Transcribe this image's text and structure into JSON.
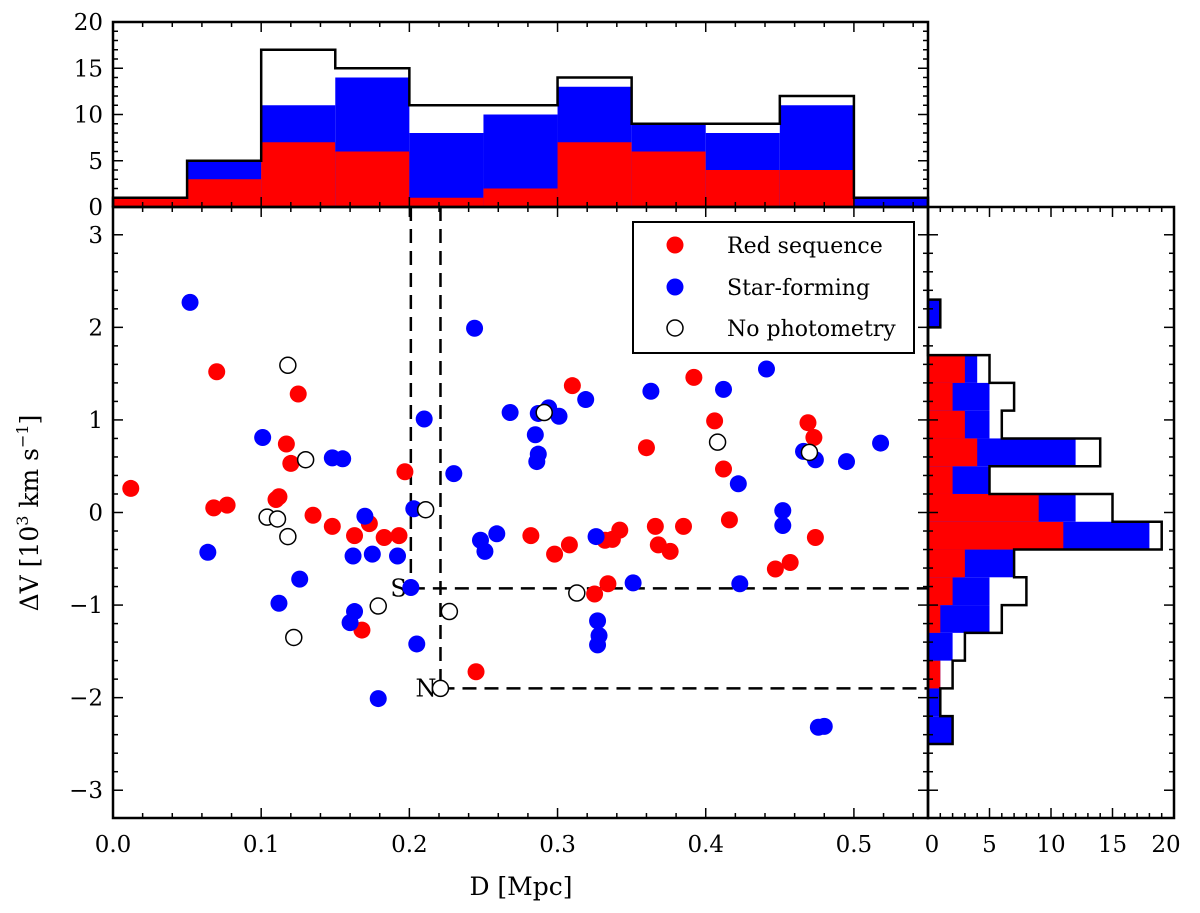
{
  "chart_data": {
    "type": "scatter",
    "xlabel": "D [Mpc]",
    "ylabel": "ΔV [10^3 km s^-1]",
    "ylabel_parts": {
      "pre": "ΔV [10",
      "sup1": "3",
      "mid": " km s",
      "sup2": "−1",
      "post": "]"
    },
    "xlim": [
      0.0,
      0.55
    ],
    "ylim": [
      -3.3,
      3.3
    ],
    "xticks": [
      0.0,
      0.1,
      0.2,
      0.3,
      0.4,
      0.5
    ],
    "xtick_labels": [
      "0.0",
      "0.1",
      "0.2",
      "0.3",
      "0.4",
      "0.5"
    ],
    "yticks": [
      -3,
      -2,
      -1,
      0,
      1,
      2,
      3
    ],
    "ytick_labels": [
      "−3",
      "−2",
      "−1",
      "0",
      "1",
      "2",
      "3"
    ],
    "legend": {
      "position": "top-right",
      "entries": [
        {
          "label": "Red sequence",
          "color": "#ff0000",
          "marker": "filled"
        },
        {
          "label": "Star-forming",
          "color": "#0000ff",
          "marker": "filled"
        },
        {
          "label": "No photometry",
          "color": "#000000",
          "marker": "open"
        }
      ]
    },
    "series": [
      {
        "name": "Red sequence",
        "color": "#ff0000",
        "points": [
          [
            0.012,
            0.26
          ],
          [
            0.07,
            1.52
          ],
          [
            0.068,
            0.05
          ],
          [
            0.077,
            0.08
          ],
          [
            0.11,
            0.14
          ],
          [
            0.112,
            0.17
          ],
          [
            0.117,
            0.74
          ],
          [
            0.12,
            0.53
          ],
          [
            0.125,
            1.28
          ],
          [
            0.135,
            -0.03
          ],
          [
            0.148,
            -0.15
          ],
          [
            0.163,
            -0.25
          ],
          [
            0.173,
            -0.12
          ],
          [
            0.168,
            -1.27
          ],
          [
            0.183,
            -0.27
          ],
          [
            0.193,
            -0.25
          ],
          [
            0.197,
            0.44
          ],
          [
            0.245,
            -1.72
          ],
          [
            0.282,
            -0.25
          ],
          [
            0.298,
            -0.45
          ],
          [
            0.308,
            -0.35
          ],
          [
            0.31,
            1.37
          ],
          [
            0.325,
            -0.88
          ],
          [
            0.332,
            -0.3
          ],
          [
            0.337,
            -0.29
          ],
          [
            0.334,
            -0.77
          ],
          [
            0.342,
            -0.19
          ],
          [
            0.36,
            0.7
          ],
          [
            0.366,
            -0.15
          ],
          [
            0.368,
            -0.35
          ],
          [
            0.376,
            -0.42
          ],
          [
            0.385,
            -0.15
          ],
          [
            0.392,
            1.46
          ],
          [
            0.406,
            0.99
          ],
          [
            0.412,
            0.47
          ],
          [
            0.416,
            -0.08
          ],
          [
            0.447,
            -0.61
          ],
          [
            0.457,
            -0.54
          ],
          [
            0.469,
            0.97
          ],
          [
            0.473,
            0.81
          ],
          [
            0.474,
            -0.27
          ]
        ]
      },
      {
        "name": "Star-forming",
        "color": "#0000ff",
        "points": [
          [
            0.052,
            2.27
          ],
          [
            0.064,
            -0.43
          ],
          [
            0.101,
            0.81
          ],
          [
            0.112,
            -0.98
          ],
          [
            0.126,
            -0.72
          ],
          [
            0.148,
            0.59
          ],
          [
            0.155,
            0.58
          ],
          [
            0.162,
            -0.47
          ],
          [
            0.16,
            -1.19
          ],
          [
            0.163,
            -1.07
          ],
          [
            0.17,
            -0.04
          ],
          [
            0.175,
            -0.45
          ],
          [
            0.179,
            -2.01
          ],
          [
            0.192,
            -0.47
          ],
          [
            0.201,
            -0.81
          ],
          [
            0.203,
            0.04
          ],
          [
            0.205,
            -1.42
          ],
          [
            0.21,
            1.01
          ],
          [
            0.23,
            0.42
          ],
          [
            0.244,
            1.99
          ],
          [
            0.248,
            -0.3
          ],
          [
            0.251,
            -0.42
          ],
          [
            0.259,
            -0.23
          ],
          [
            0.268,
            1.08
          ],
          [
            0.285,
            0.84
          ],
          [
            0.286,
            0.55
          ],
          [
            0.287,
            0.63
          ],
          [
            0.287,
            1.07
          ],
          [
            0.294,
            1.13
          ],
          [
            0.301,
            1.04
          ],
          [
            0.319,
            1.22
          ],
          [
            0.326,
            -0.26
          ],
          [
            0.327,
            -1.43
          ],
          [
            0.327,
            -1.17
          ],
          [
            0.328,
            -1.33
          ],
          [
            0.351,
            -0.76
          ],
          [
            0.363,
            1.31
          ],
          [
            0.412,
            1.33
          ],
          [
            0.422,
            0.31
          ],
          [
            0.423,
            -0.77
          ],
          [
            0.441,
            1.55
          ],
          [
            0.452,
            0.02
          ],
          [
            0.452,
            -0.14
          ],
          [
            0.466,
            0.66
          ],
          [
            0.474,
            0.57
          ],
          [
            0.476,
            -2.32
          ],
          [
            0.48,
            -2.31
          ],
          [
            0.495,
            0.55
          ],
          [
            0.518,
            0.75
          ]
        ]
      },
      {
        "name": "No photometry",
        "color": "#000000",
        "marker": "open",
        "points": [
          [
            0.104,
            -0.05
          ],
          [
            0.111,
            -0.07
          ],
          [
            0.118,
            -0.26
          ],
          [
            0.118,
            1.59
          ],
          [
            0.122,
            -1.35
          ],
          [
            0.13,
            0.57
          ],
          [
            0.179,
            -1.01
          ],
          [
            0.211,
            0.03
          ],
          [
            0.227,
            -1.07
          ],
          [
            0.221,
            -1.9
          ],
          [
            0.291,
            1.08
          ],
          [
            0.313,
            -0.87
          ],
          [
            0.408,
            0.76
          ],
          [
            0.47,
            0.65
          ]
        ]
      }
    ],
    "reference_lines": [
      {
        "label": "S",
        "x": 0.201,
        "y": -0.82
      },
      {
        "label": "N",
        "x": 0.221,
        "y": -1.9
      }
    ],
    "top_histogram": {
      "xlim": [
        0.0,
        0.55
      ],
      "ylim": [
        0,
        20
      ],
      "yticks": [
        0,
        5,
        10,
        15,
        20
      ],
      "ytick_labels": [
        "0",
        "5",
        "10",
        "15",
        "20"
      ],
      "bins": [
        0.0,
        0.05,
        0.1,
        0.15,
        0.2,
        0.25,
        0.3,
        0.35,
        0.4,
        0.45,
        0.5,
        0.55
      ],
      "red": [
        1,
        3,
        7,
        6,
        1,
        2,
        7,
        6,
        4,
        4,
        0
      ],
      "red_plus_sf": [
        1,
        5,
        11,
        14,
        8,
        10,
        13,
        9,
        8,
        11,
        1
      ],
      "total": [
        1,
        5,
        17,
        15,
        11,
        11,
        14,
        9,
        9,
        12,
        1
      ]
    },
    "right_histogram": {
      "xlim": [
        0,
        20
      ],
      "xticks": [
        0,
        5,
        10,
        15,
        20
      ],
      "xtick_labels": [
        "0",
        "5",
        "10",
        "15",
        "20"
      ],
      "bins": [
        -2.5,
        -2.2,
        -1.9,
        -1.6,
        -1.3,
        -1.0,
        -0.7,
        -0.4,
        -0.1,
        0.2,
        0.5,
        0.8,
        1.1,
        1.4,
        1.7,
        2.0,
        2.3
      ],
      "red": [
        0,
        0,
        1,
        0,
        1,
        2,
        3,
        11,
        9,
        2,
        4,
        3,
        2,
        3,
        0,
        0
      ],
      "red_plus_sf": [
        2,
        1,
        1,
        2,
        5,
        5,
        7,
        18,
        12,
        5,
        12,
        5,
        5,
        4,
        0,
        1
      ],
      "total": [
        2,
        1,
        2,
        3,
        6,
        8,
        7,
        19,
        15,
        5,
        14,
        6,
        7,
        5,
        0,
        1
      ]
    }
  }
}
